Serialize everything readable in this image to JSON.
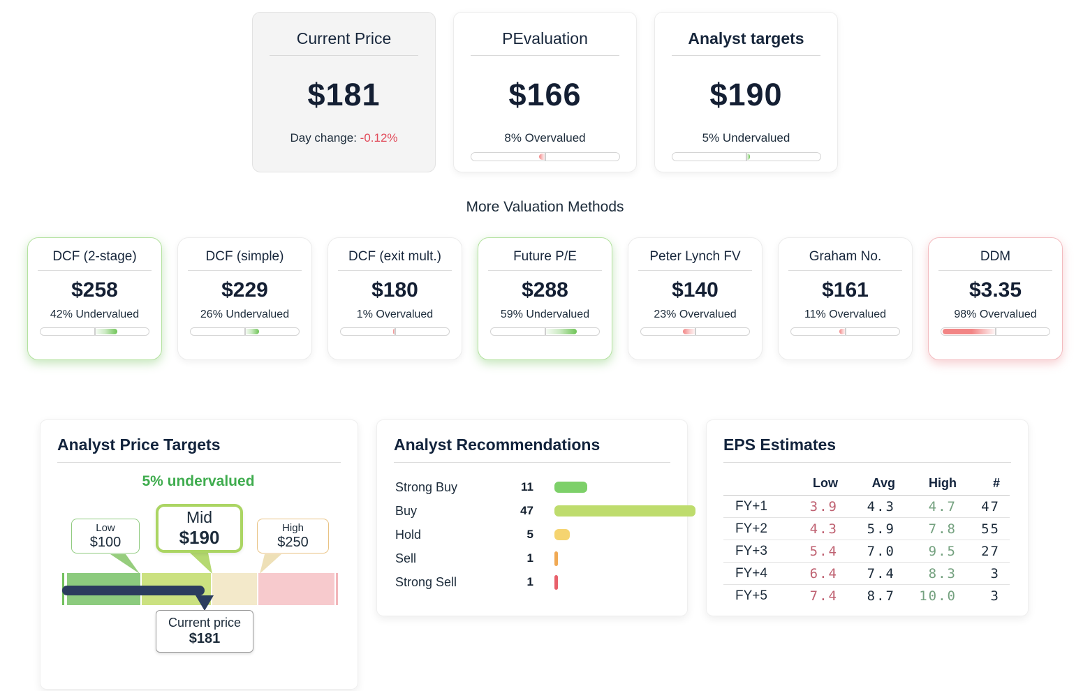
{
  "colors": {
    "navy_text": "#1c2b3a",
    "negative_red": "#e14b5a",
    "undervalued_green_text": "#3fac4e",
    "under_fill_green": "#6fc457",
    "over_fill_red": "#f28585",
    "indicator_navy": "#2b3c5e",
    "segment_green": "#8ccb7e",
    "segment_lightgreen": "#cbe180",
    "segment_cream": "#f3e9ca",
    "segment_pink": "#f7cacd"
  },
  "summary_cards": [
    {
      "title": "Current Price",
      "value": "$181",
      "day_change_label": "Day change:",
      "day_change_value": "-0.12%"
    },
    {
      "title": "PEvaluation",
      "value": "$166",
      "status": "8% Overvalued",
      "direction": "over",
      "pct": 8
    },
    {
      "title": "Analyst targets",
      "value": "$190",
      "status": "5% Undervalued",
      "direction": "under",
      "pct": 5
    }
  ],
  "more_methods": {
    "heading": "More Valuation Methods",
    "cards": [
      {
        "title": "DCF (2-stage)",
        "value": "$258",
        "status": "42% Undervalued",
        "direction": "under",
        "pct": 42
      },
      {
        "title": "DCF (simple)",
        "value": "$229",
        "status": "26% Undervalued",
        "direction": "under",
        "pct": 26
      },
      {
        "title": "DCF (exit mult.)",
        "value": "$180",
        "status": "1% Overvalued",
        "direction": "over",
        "pct": 1
      },
      {
        "title": "Future P/E",
        "value": "$288",
        "status": "59% Undervalued",
        "direction": "under",
        "pct": 59
      },
      {
        "title": "Peter Lynch FV",
        "value": "$140",
        "status": "23% Overvalued",
        "direction": "over",
        "pct": 23
      },
      {
        "title": "Graham No.",
        "value": "$161",
        "status": "11% Overvalued",
        "direction": "over",
        "pct": 11
      },
      {
        "title": "DDM",
        "value": "$3.35",
        "status": "98% Overvalued",
        "direction": "over",
        "pct": 98
      }
    ]
  },
  "price_targets": {
    "title": "Analyst Price Targets",
    "subtitle": "5% undervalued",
    "low_label": "Low",
    "low_value": "$100",
    "mid_label": "Mid",
    "mid_value": "$190",
    "high_label": "High",
    "high_value": "$250",
    "current_label": "Current price",
    "current_value": "$181"
  },
  "recommendations": {
    "title": "Analyst Recommendations",
    "rows": [
      {
        "label": "Strong Buy",
        "count": 11,
        "color": "#7dd069"
      },
      {
        "label": "Buy",
        "count": 47,
        "color": "#bedc6d"
      },
      {
        "label": "Hold",
        "count": 5,
        "color": "#f5d470"
      },
      {
        "label": "Sell",
        "count": 1,
        "color": "#f0a954"
      },
      {
        "label": "Strong Sell",
        "count": 1,
        "color": "#e8606b"
      }
    ]
  },
  "eps_estimates": {
    "title": "EPS Estimates",
    "columns": [
      "Low",
      "Avg",
      "High",
      "#"
    ],
    "rows": [
      {
        "label": "FY+1",
        "low": "3.9",
        "avg": "4.3",
        "high": "4.7",
        "num": "47"
      },
      {
        "label": "FY+2",
        "low": "4.3",
        "avg": "5.9",
        "high": "7.8",
        "num": "55"
      },
      {
        "label": "FY+3",
        "low": "5.4",
        "avg": "7.0",
        "high": "9.5",
        "num": "27"
      },
      {
        "label": "FY+4",
        "low": "6.4",
        "avg": "7.4",
        "high": "8.3",
        "num": "3"
      },
      {
        "label": "FY+5",
        "low": "7.4",
        "avg": "8.7",
        "high": "10.0",
        "num": "3"
      }
    ]
  },
  "chart_data": [
    {
      "type": "bar",
      "title": "Analyst Recommendations",
      "categories": [
        "Strong Buy",
        "Buy",
        "Hold",
        "Sell",
        "Strong Sell"
      ],
      "values": [
        11,
        47,
        5,
        1,
        1
      ],
      "legend_position": "none",
      "grid": false
    },
    {
      "type": "table",
      "title": "EPS Estimates",
      "columns": [
        "",
        "Low",
        "Avg",
        "High",
        "#"
      ],
      "rows": [
        [
          "FY+1",
          3.9,
          4.3,
          4.7,
          47
        ],
        [
          "FY+2",
          4.3,
          5.9,
          7.8,
          55
        ],
        [
          "FY+3",
          5.4,
          7.0,
          9.5,
          27
        ],
        [
          "FY+4",
          6.4,
          7.4,
          8.3,
          3
        ],
        [
          "FY+5",
          7.4,
          8.7,
          10.0,
          3
        ]
      ]
    }
  ]
}
